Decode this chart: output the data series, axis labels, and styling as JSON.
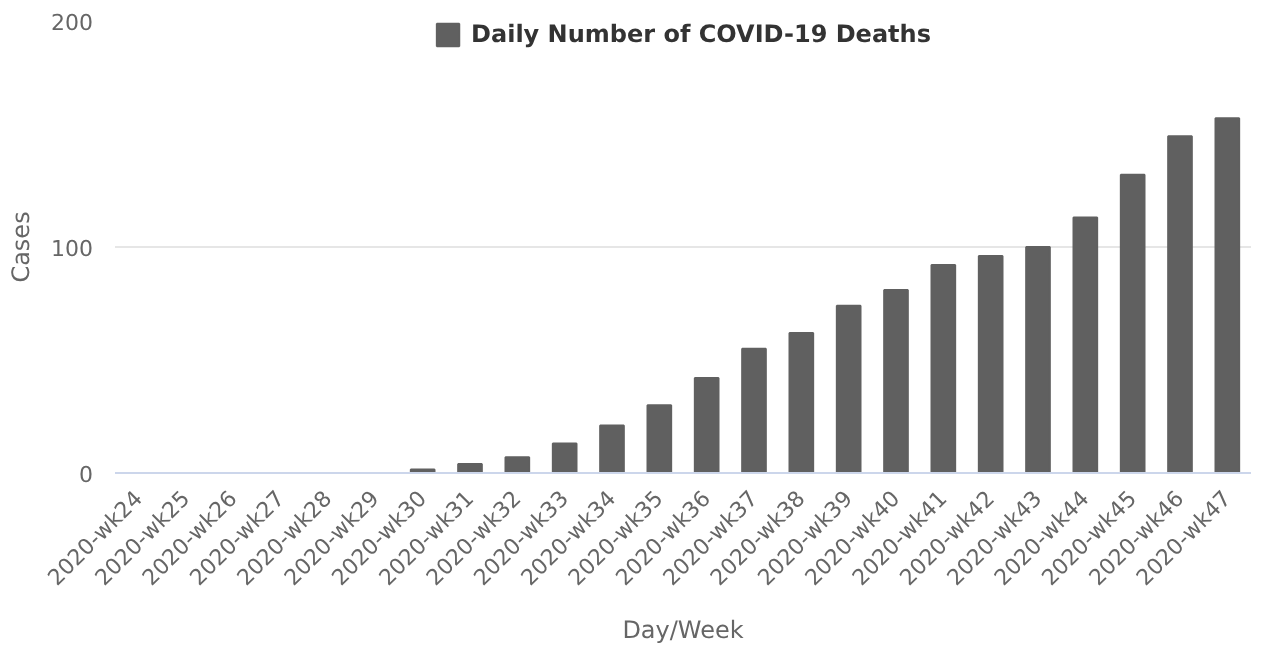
{
  "chart_data": {
    "type": "bar",
    "xlabel": "Day/Week",
    "ylabel": "Cases",
    "categories": [
      "2020-wk24",
      "2020-wk25",
      "2020-wk26",
      "2020-wk27",
      "2020-wk28",
      "2020-wk29",
      "2020-wk30",
      "2020-wk31",
      "2020-wk32",
      "2020-wk33",
      "2020-wk34",
      "2020-wk35",
      "2020-wk36",
      "2020-wk37",
      "2020-wk38",
      "2020-wk39",
      "2020-wk40",
      "2020-wk41",
      "2020-wk42",
      "2020-wk43",
      "2020-wk44",
      "2020-wk45",
      "2020-wk46",
      "2020-wk47"
    ],
    "series": [
      {
        "name": "Daily Number of COVID-19 Deaths",
        "color": "#606060",
        "values": [
          0,
          0,
          0,
          0,
          0,
          0,
          1.5,
          4,
          7,
          13,
          21,
          30,
          42,
          55,
          62,
          74,
          81,
          92,
          96,
          100,
          113,
          132,
          149,
          157
        ]
      }
    ],
    "ylim": [
      0,
      200
    ],
    "yticks": [
      0,
      100,
      200
    ],
    "grid": "y",
    "legend": "top"
  }
}
